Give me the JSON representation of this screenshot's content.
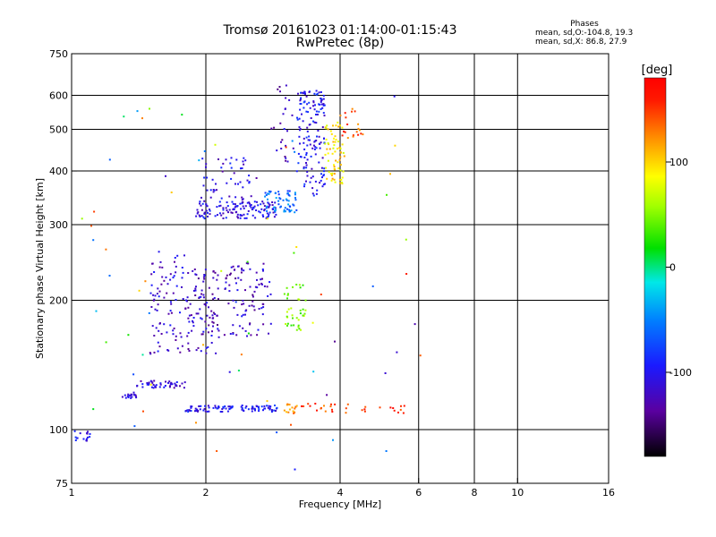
{
  "chart_data": {
    "type": "scatter",
    "title": "Tromsø 20161023 01:14:00-01:15:43",
    "subtitle": "RwPretec (8p)",
    "xlabel": "Frequency [MHz]",
    "ylabel": "Stationary phase Virtual Height [km]",
    "x_scale": "log",
    "y_scale": "log",
    "xlim": [
      1,
      16
    ],
    "ylim": [
      75,
      750
    ],
    "x_ticks": [
      1,
      2,
      4,
      6,
      8,
      10,
      16
    ],
    "y_ticks": [
      75,
      100,
      200,
      300,
      400,
      500,
      600,
      750
    ],
    "x_gridlines": [
      2,
      4,
      6,
      8,
      10
    ],
    "y_gridlines": [
      100,
      200,
      300,
      400,
      500,
      600
    ],
    "grid": true,
    "colorbar": {
      "label": "[deg]",
      "min": -180,
      "max": 180,
      "ticks": [
        100,
        0,
        -100
      ],
      "colormap": "rainbow"
    },
    "phases_box": {
      "header": "Phases",
      "line1": "mean, sd,O:-104.8, 19.3",
      "line2": "mean, sd,X: 86.8, 27.9"
    },
    "clusters": [
      {
        "f": [
          1.0,
          1.1
        ],
        "h": [
          93,
          100
        ],
        "phase": -100,
        "n": 16
      },
      {
        "f": [
          1.3,
          1.4
        ],
        "h": [
          118,
          122
        ],
        "phase": -110,
        "n": 18
      },
      {
        "f": [
          1.4,
          1.8
        ],
        "h": [
          125,
          130
        ],
        "phase": -115,
        "n": 45
      },
      {
        "f": [
          1.8,
          2.3
        ],
        "h": [
          110,
          114
        ],
        "phase": -100,
        "n": 55
      },
      {
        "f": [
          2.4,
          2.9
        ],
        "h": [
          110,
          114
        ],
        "phase": -95,
        "n": 45
      },
      {
        "f": [
          3.0,
          3.2
        ],
        "h": [
          109,
          115
        ],
        "phase": 120,
        "n": 16
      },
      {
        "f": [
          3.2,
          3.9
        ],
        "h": [
          110,
          115
        ],
        "phase": 140,
        "n": 16
      },
      {
        "f": [
          4.0,
          5.7
        ],
        "h": [
          109,
          115
        ],
        "phase": 150,
        "n": 16
      },
      {
        "f": [
          1.5,
          1.8
        ],
        "h": [
          150,
          260
        ],
        "phase": -115,
        "n": 80
      },
      {
        "f": [
          1.8,
          2.15
        ],
        "h": [
          150,
          240
        ],
        "phase": -120,
        "n": 100
      },
      {
        "f": [
          2.2,
          2.8
        ],
        "h": [
          165,
          245
        ],
        "phase": -120,
        "n": 90
      },
      {
        "f": [
          3.0,
          3.35
        ],
        "h": [
          170,
          220
        ],
        "phase": 50,
        "n": 40
      },
      {
        "f": [
          1.9,
          2.9
        ],
        "h": [
          310,
          340
        ],
        "phase": -105,
        "n": 130
      },
      {
        "f": [
          1.95,
          2.6
        ],
        "h": [
          340,
          430
        ],
        "phase": -110,
        "n": 50
      },
      {
        "f": [
          2.7,
          3.2
        ],
        "h": [
          320,
          360
        ],
        "phase": -60,
        "n": 60
      },
      {
        "f": [
          3.2,
          3.7
        ],
        "h": [
          350,
          620
        ],
        "phase": -100,
        "n": 150
      },
      {
        "f": [
          2.8,
          3.15
        ],
        "h": [
          420,
          640
        ],
        "phase": -120,
        "n": 25
      },
      {
        "f": [
          3.7,
          4.1
        ],
        "h": [
          370,
          520
        ],
        "phase": 95,
        "n": 70
      },
      {
        "f": [
          4.0,
          4.5
        ],
        "h": [
          470,
          560
        ],
        "phase": 140,
        "n": 20
      },
      {
        "f": [
          1.05,
          6.5
        ],
        "h": [
          80,
          600
        ],
        "phase": 0,
        "n": 70
      }
    ]
  }
}
